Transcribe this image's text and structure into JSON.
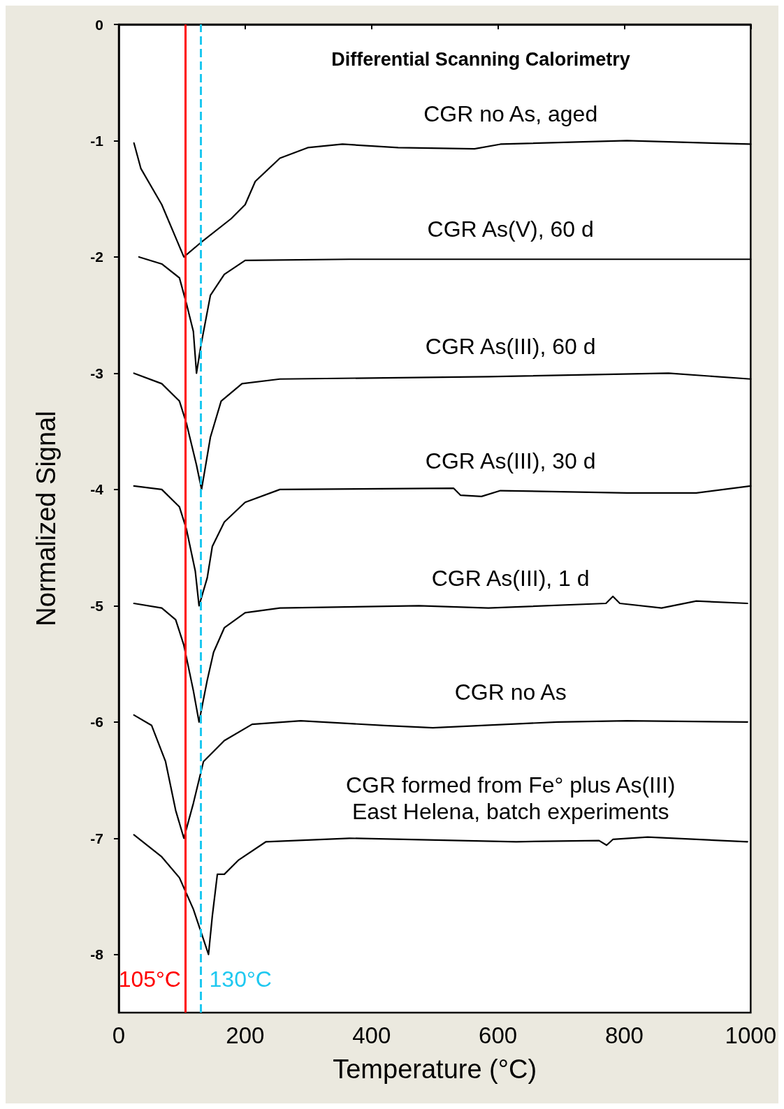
{
  "chart_data": {
    "type": "line",
    "title": "Differential Scanning Calorimetry",
    "xlabel": "Temperature (°C)",
    "ylabel": "Normalized Signal",
    "xlim": [
      0,
      1000
    ],
    "xticks": [
      0,
      200,
      400,
      600,
      800,
      1000
    ],
    "ylim": [
      -8.5,
      0
    ],
    "yticks": [
      0,
      -1,
      -2,
      -3,
      -4,
      -5,
      -6,
      -7,
      -8
    ],
    "grid": false,
    "legend": false,
    "marker": "none",
    "line_style": "solid",
    "series": [
      {
        "name": "CGR no As, aged",
        "color": "#000000",
        "x": [
          24,
          35,
          68,
          103,
          129,
          178,
          200,
          216,
          255,
          299,
          354,
          442,
          563,
          604,
          804,
          1000
        ],
        "values": [
          -1.02,
          -1.24,
          -1.55,
          -2.0,
          -1.88,
          -1.67,
          -1.55,
          -1.35,
          -1.15,
          -1.06,
          -1.03,
          -1.06,
          -1.07,
          -1.03,
          -1.0,
          -1.03
        ]
      },
      {
        "name": "CGR As(V), 60 d",
        "color": "#000000",
        "x": [
          32,
          68,
          96,
          107,
          118,
          123,
          130,
          145,
          167,
          200,
          365,
          1000
        ],
        "values": [
          -2.0,
          -2.06,
          -2.18,
          -2.4,
          -2.64,
          -3.0,
          -2.76,
          -2.33,
          -2.15,
          -2.03,
          -2.02,
          -2.02
        ]
      },
      {
        "name": "CGR As(III), 60 d",
        "color": "#000000",
        "x": [
          24,
          68,
          96,
          107,
          123,
          131,
          145,
          162,
          195,
          255,
          585,
          870,
          1000
        ],
        "values": [
          -3.0,
          -3.09,
          -3.24,
          -3.43,
          -3.79,
          -4.0,
          -3.55,
          -3.24,
          -3.09,
          -3.05,
          -3.03,
          -3.0,
          -3.05
        ]
      },
      {
        "name": "CGR As(III), 30 d",
        "color": "#000000",
        "x": [
          24,
          68,
          96,
          107,
          121,
          127,
          140,
          148,
          167,
          200,
          255,
          530,
          541,
          574,
          604,
          804,
          914,
          1000
        ],
        "values": [
          -3.97,
          -4.0,
          -4.15,
          -4.34,
          -4.7,
          -5.0,
          -4.76,
          -4.49,
          -4.28,
          -4.11,
          -4.0,
          -3.99,
          -4.05,
          -4.06,
          -4.01,
          -4.03,
          -4.03,
          -3.97
        ]
      },
      {
        "name": "CGR As(III), 1 d",
        "color": "#000000",
        "x": [
          24,
          68,
          90,
          103,
          118,
          127,
          140,
          150,
          167,
          200,
          255,
          475,
          585,
          771,
          782,
          793,
          859,
          914,
          995
        ],
        "values": [
          -4.98,
          -5.02,
          -5.12,
          -5.34,
          -5.73,
          -6.0,
          -5.64,
          -5.4,
          -5.19,
          -5.06,
          -5.02,
          -5.0,
          -5.02,
          -4.98,
          -4.92,
          -4.98,
          -5.02,
          -4.96,
          -4.98
        ]
      },
      {
        "name": "CGR no As",
        "color": "#000000",
        "x": [
          24,
          52,
          74,
          90,
          103,
          118,
          134,
          167,
          211,
          288,
          420,
          497,
          695,
          804,
          995
        ],
        "values": [
          -5.94,
          -6.03,
          -6.34,
          -6.76,
          -7.0,
          -6.7,
          -6.34,
          -6.16,
          -6.02,
          -5.99,
          -6.03,
          -6.05,
          -6.0,
          -5.99,
          -6.0
        ]
      },
      {
        "name": "CGR formed from Fe° plus As(III)\nEast Helena, batch experiments",
        "color": "#000000",
        "x": [
          24,
          68,
          96,
          118,
          131,
          142,
          148,
          156,
          167,
          189,
          233,
          365,
          629,
          760,
          772,
          782,
          837,
          995
        ],
        "values": [
          -6.97,
          -7.16,
          -7.34,
          -7.61,
          -7.82,
          -8.0,
          -7.67,
          -7.31,
          -7.31,
          -7.19,
          -7.03,
          -7.0,
          -7.03,
          -7.02,
          -7.06,
          -7.01,
          -6.99,
          -7.03
        ]
      }
    ],
    "ref_lines": [
      {
        "axis": "x",
        "value": 105,
        "label": "105°C",
        "color": "#ff0000",
        "line_style": "solid"
      },
      {
        "axis": "x",
        "value": 130,
        "label": "130°C",
        "color": "#1ec8f0",
        "line_style": "dashed"
      }
    ]
  }
}
